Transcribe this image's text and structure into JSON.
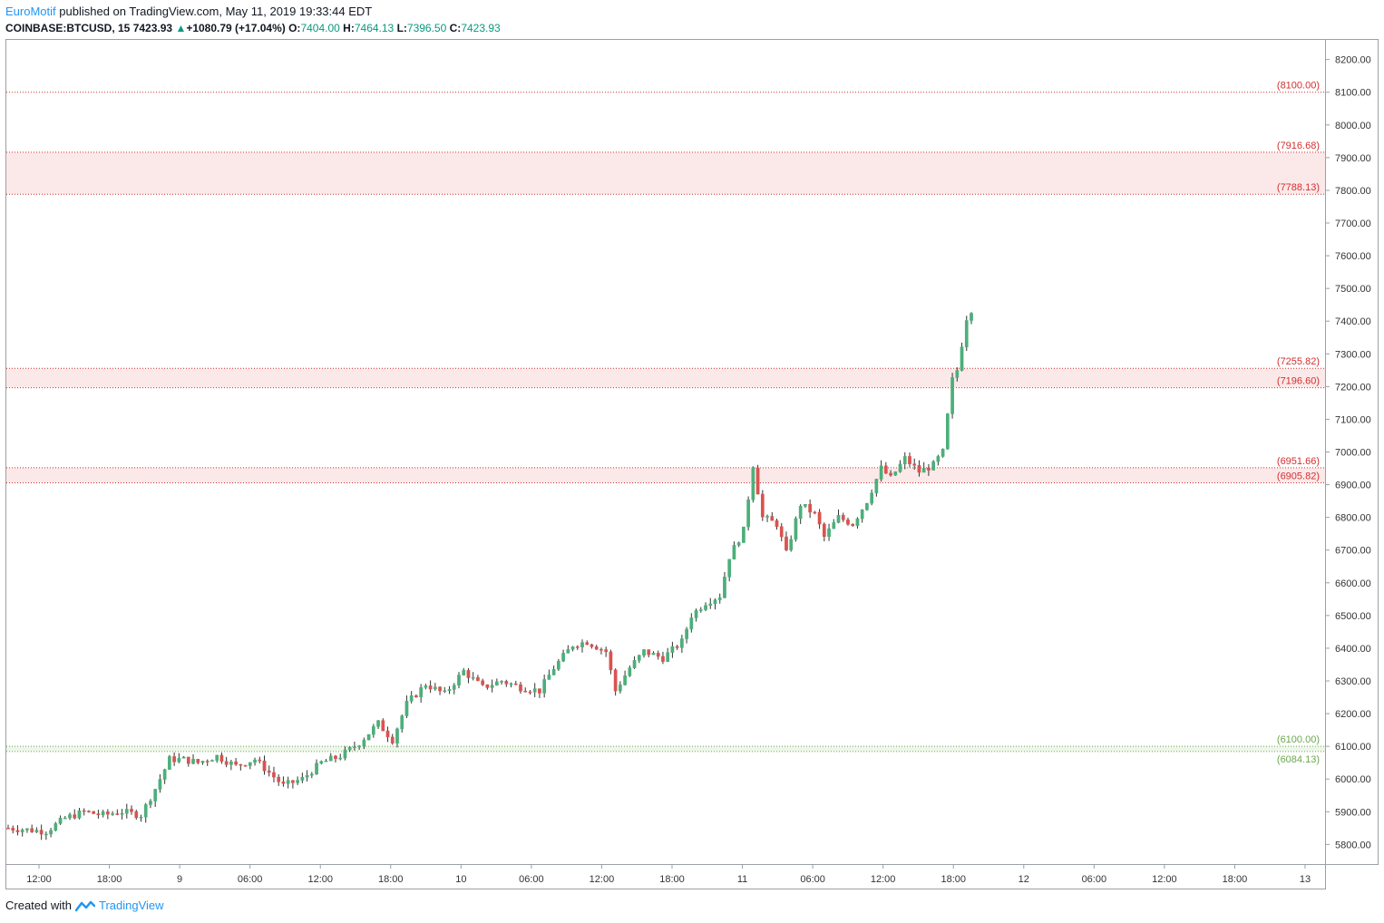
{
  "header": {
    "author": "EuroMotif",
    "published_text": "published on TradingView.com, May 11, 2019 19:33:44 EDT",
    "symbol": "COINBASE:BTCUSD, 15",
    "last": "7423.93",
    "change": "+1080.79 (+17.04%)",
    "o_label": "O:",
    "o_value": "7404.00",
    "h_label": "H:",
    "h_value": "7464.13",
    "l_label": "L:",
    "l_value": "7396.50",
    "c_label": "C:",
    "c_value": "7423.93"
  },
  "footer": {
    "created_with": "Created with",
    "brand": "TradingView"
  },
  "colors": {
    "up": "#4caf7a",
    "down": "#d9534f",
    "resistance": "#d32f2f",
    "support": "#6aa84f",
    "zone_fill": "#fbe9e9"
  },
  "chart_data": {
    "type": "candlestick",
    "ylim": [
      5740,
      8260
    ],
    "y_ticks": [
      "8200.00",
      "8100.00",
      "8000.00",
      "7900.00",
      "7800.00",
      "7700.00",
      "7600.00",
      "7500.00",
      "7400.00",
      "7300.00",
      "7200.00",
      "7100.00",
      "7000.00",
      "6900.00",
      "6800.00",
      "6700.00",
      "6600.00",
      "6500.00",
      "6400.00",
      "6300.00",
      "6200.00",
      "6100.00",
      "6000.00",
      "5900.00",
      "5800.00"
    ],
    "x_ticks": [
      "12:00",
      "18:00",
      "9",
      "06:00",
      "12:00",
      "18:00",
      "10",
      "06:00",
      "12:00",
      "18:00",
      "11",
      "06:00",
      "12:00",
      "18:00",
      "12",
      "06:00",
      "12:00",
      "18:00",
      "13"
    ],
    "levels": [
      {
        "value": 8100.0,
        "label": "(8100.00)",
        "kind": "resistance"
      },
      {
        "value": 7916.68,
        "label": "(7916.68)",
        "kind": "resistance"
      },
      {
        "value": 7788.13,
        "label": "(7788.13)",
        "kind": "resistance"
      },
      {
        "value": 7255.82,
        "label": "(7255.82)",
        "kind": "resistance"
      },
      {
        "value": 7196.6,
        "label": "(7196.60)",
        "kind": "resistance"
      },
      {
        "value": 6951.66,
        "label": "(6951.66)",
        "kind": "resistance"
      },
      {
        "value": 6905.82,
        "label": "(6905.82)",
        "kind": "resistance"
      },
      {
        "value": 6100.0,
        "label": "(6100.00)",
        "kind": "support"
      },
      {
        "value": 6084.13,
        "label": "(6084.13)",
        "kind": "support"
      }
    ],
    "zones": [
      [
        7788.13,
        7916.68
      ],
      [
        7196.6,
        7255.82
      ],
      [
        6905.82,
        6951.66
      ],
      [
        6084.13,
        6100.0
      ]
    ],
    "price_path": [
      [
        0,
        5850
      ],
      [
        8,
        5840
      ],
      [
        12,
        5880
      ],
      [
        16,
        5900
      ],
      [
        20,
        5890
      ],
      [
        24,
        5900
      ],
      [
        28,
        5890
      ],
      [
        31,
        5970
      ],
      [
        34,
        6060
      ],
      [
        37,
        6060
      ],
      [
        40,
        6050
      ],
      [
        44,
        6070
      ],
      [
        48,
        6040
      ],
      [
        52,
        6060
      ],
      [
        55,
        6020
      ],
      [
        58,
        5980
      ],
      [
        62,
        6000
      ],
      [
        66,
        6050
      ],
      [
        70,
        6070
      ],
      [
        74,
        6110
      ],
      [
        78,
        6170
      ],
      [
        81,
        6120
      ],
      [
        84,
        6230
      ],
      [
        88,
        6290
      ],
      [
        92,
        6260
      ],
      [
        96,
        6330
      ],
      [
        100,
        6280
      ],
      [
        104,
        6300
      ],
      [
        108,
        6280
      ],
      [
        112,
        6270
      ],
      [
        115,
        6340
      ],
      [
        119,
        6410
      ],
      [
        122,
        6420
      ],
      [
        126,
        6390
      ],
      [
        128,
        6270
      ],
      [
        131,
        6340
      ],
      [
        134,
        6390
      ],
      [
        138,
        6370
      ],
      [
        142,
        6420
      ],
      [
        144,
        6500
      ],
      [
        147,
        6540
      ],
      [
        150,
        6560
      ],
      [
        152,
        6680
      ],
      [
        155,
        6760
      ],
      [
        157,
        6960
      ],
      [
        159,
        6800
      ],
      [
        162,
        6780
      ],
      [
        164,
        6690
      ],
      [
        167,
        6840
      ],
      [
        170,
        6810
      ],
      [
        172,
        6740
      ],
      [
        175,
        6800
      ],
      [
        178,
        6780
      ],
      [
        181,
        6850
      ],
      [
        184,
        6950
      ],
      [
        186,
        6920
      ],
      [
        189,
        6980
      ],
      [
        192,
        6940
      ],
      [
        195,
        6960
      ],
      [
        197,
        7000
      ],
      [
        199,
        7220
      ],
      [
        200,
        7250
      ],
      [
        202,
        7410
      ],
      [
        203,
        7423.93
      ]
    ]
  }
}
